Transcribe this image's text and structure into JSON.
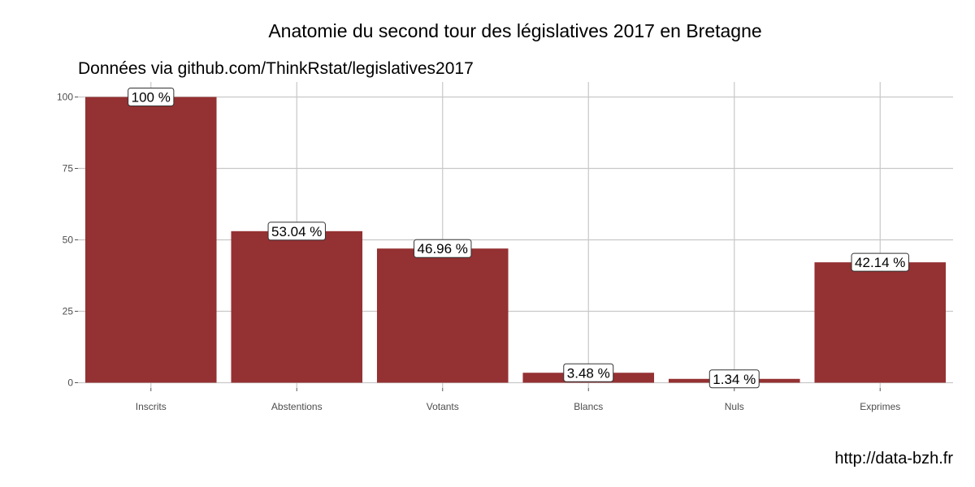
{
  "chart_data": {
    "type": "bar",
    "title": "Anatomie du second tour des législatives 2017 en Bretagne",
    "subtitle": "Données via github.com/ThinkRstat/legislatives2017",
    "caption": "http://data-bzh.fr",
    "xlabel": "",
    "ylabel": "",
    "categories": [
      "Inscrits",
      "Abstentions",
      "Votants",
      "Blancs",
      "Nuls",
      "Exprimes"
    ],
    "values": [
      100,
      53.04,
      46.96,
      3.48,
      1.34,
      42.14
    ],
    "data_labels": [
      "100 %",
      "53.04 %",
      "46.96 %",
      "3.48 %",
      "1.34 %",
      "42.14 %"
    ],
    "y_ticks": [
      0,
      25,
      50,
      75,
      100
    ],
    "ylim": [
      0,
      105
    ],
    "grid": true,
    "legend": "none",
    "bar_color": "#943132"
  }
}
